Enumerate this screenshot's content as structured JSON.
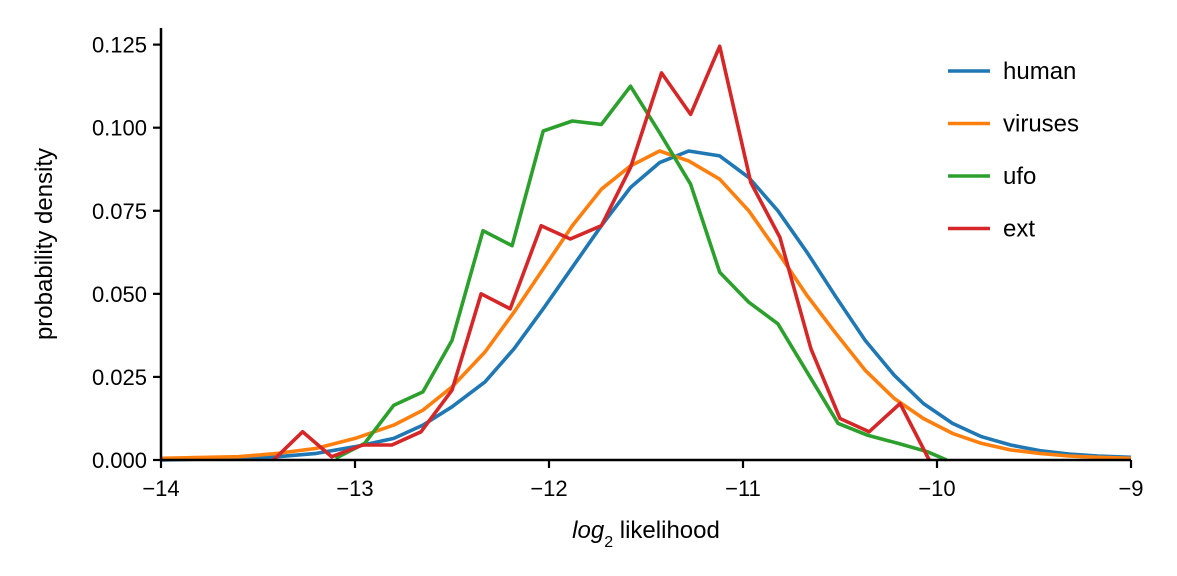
{
  "chart_data": {
    "type": "line",
    "xlabel_italic": "log",
    "xlabel_sub": "2",
    "xlabel_rest": " likelihood",
    "ylabel": "probability density",
    "xlim": [
      -14,
      -9
    ],
    "ylim": [
      0,
      0.13
    ],
    "xticks": [
      {
        "value": -14,
        "label": "−14"
      },
      {
        "value": -13,
        "label": "−13"
      },
      {
        "value": -12,
        "label": "−12"
      },
      {
        "value": -11,
        "label": "−11"
      },
      {
        "value": -10,
        "label": "−10"
      },
      {
        "value": -9,
        "label": "−9"
      }
    ],
    "yticks": [
      {
        "value": 0,
        "label": "0.000"
      },
      {
        "value": 0.025,
        "label": "0.025"
      },
      {
        "value": 0.05,
        "label": "0.050"
      },
      {
        "value": 0.075,
        "label": "0.075"
      },
      {
        "value": 0.1,
        "label": "0.100"
      },
      {
        "value": 0.125,
        "label": "0.125"
      }
    ],
    "legend_position": "top-right",
    "grid": false,
    "series": [
      {
        "name": "human",
        "color": "#1f77b4",
        "x": [
          -14.0,
          -13.6,
          -13.4,
          -13.2,
          -13.0,
          -12.8,
          -12.65,
          -12.5,
          -12.33,
          -12.18,
          -12.03,
          -11.88,
          -11.73,
          -11.58,
          -11.43,
          -11.28,
          -11.12,
          -10.97,
          -10.82,
          -10.67,
          -10.52,
          -10.37,
          -10.22,
          -10.07,
          -9.92,
          -9.77,
          -9.62,
          -9.47,
          -9.32,
          -9.17,
          -9.0
        ],
        "y": [
          0.0,
          0.0005,
          0.001,
          0.002,
          0.004,
          0.0065,
          0.0105,
          0.016,
          0.0235,
          0.0335,
          0.0455,
          0.058,
          0.0705,
          0.082,
          0.0895,
          0.093,
          0.0915,
          0.085,
          0.075,
          0.0625,
          0.049,
          0.036,
          0.0255,
          0.017,
          0.011,
          0.007,
          0.0045,
          0.0028,
          0.0018,
          0.0012,
          0.0008
        ]
      },
      {
        "name": "viruses",
        "color": "#ff7f0e",
        "x": [
          -14.0,
          -13.6,
          -13.4,
          -13.2,
          -13.0,
          -12.8,
          -12.65,
          -12.5,
          -12.33,
          -12.18,
          -12.03,
          -11.88,
          -11.73,
          -11.58,
          -11.43,
          -11.28,
          -11.12,
          -10.97,
          -10.82,
          -10.67,
          -10.52,
          -10.37,
          -10.22,
          -10.07,
          -9.92,
          -9.77,
          -9.62,
          -9.47,
          -9.32,
          -9.17,
          -9.0
        ],
        "y": [
          0.0005,
          0.001,
          0.002,
          0.0035,
          0.0065,
          0.0105,
          0.015,
          0.022,
          0.0325,
          0.0445,
          0.0575,
          0.0705,
          0.0815,
          0.0885,
          0.093,
          0.09,
          0.0845,
          0.075,
          0.0625,
          0.0495,
          0.038,
          0.027,
          0.0185,
          0.0125,
          0.008,
          0.005,
          0.003,
          0.002,
          0.0012,
          0.0008,
          0.0005
        ]
      },
      {
        "name": "ufo",
        "color": "#2ca02c",
        "x": [
          -13.1,
          -12.95,
          -12.8,
          -12.65,
          -12.5,
          -12.34,
          -12.19,
          -12.03,
          -11.88,
          -11.73,
          -11.58,
          -11.43,
          -11.27,
          -11.12,
          -10.97,
          -10.82,
          -10.66,
          -10.51,
          -10.36,
          -10.2,
          -10.05,
          -9.95
        ],
        "y": [
          0.0005,
          0.005,
          0.0165,
          0.0205,
          0.036,
          0.069,
          0.0645,
          0.099,
          0.102,
          0.101,
          0.1125,
          0.0985,
          0.083,
          0.0565,
          0.0475,
          0.041,
          0.0255,
          0.011,
          0.0075,
          0.005,
          0.0025,
          0.0
        ]
      },
      {
        "name": "ext",
        "color": "#d62728",
        "x": [
          -13.42,
          -13.27,
          -13.12,
          -12.96,
          -12.81,
          -12.66,
          -12.5,
          -12.35,
          -12.2,
          -12.04,
          -11.89,
          -11.73,
          -11.58,
          -11.42,
          -11.27,
          -11.12,
          -10.96,
          -10.81,
          -10.65,
          -10.5,
          -10.35,
          -10.19,
          -10.04
        ],
        "y": [
          0.0,
          0.0085,
          0.001,
          0.0045,
          0.0045,
          0.0085,
          0.021,
          0.05,
          0.0455,
          0.0705,
          0.0665,
          0.0705,
          0.088,
          0.1165,
          0.104,
          0.1245,
          0.0835,
          0.067,
          0.0335,
          0.0125,
          0.0085,
          0.017,
          0.0
        ]
      }
    ]
  }
}
